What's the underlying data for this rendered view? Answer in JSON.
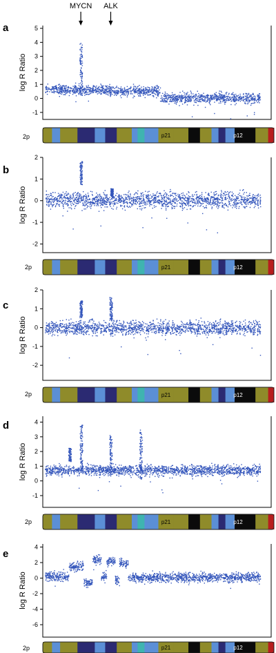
{
  "chart_data": [
    {
      "panel": "a",
      "type": "scatter",
      "ylabel": "log R Ratio",
      "ylim": [
        -1.5,
        5.2
      ],
      "yticks": [
        -1,
        0,
        1,
        2,
        3,
        4,
        5
      ],
      "chromosome_label": "2p",
      "segments": [
        {
          "x0": 0.0,
          "x1": 0.3,
          "y": 0.65
        },
        {
          "x0": 0.3,
          "x1": 0.535,
          "y": 0.55
        },
        {
          "x0": 0.535,
          "x1": 1.0,
          "y": 0.05
        }
      ],
      "spikes": [
        {
          "x": 0.167,
          "y": 2.2,
          "max": 4.4
        }
      ]
    },
    {
      "panel": "b",
      "type": "scatter",
      "ylabel": "log R Ratio",
      "ylim": [
        -2.4,
        2.0
      ],
      "yticks": [
        -2,
        -1,
        0,
        1,
        2
      ],
      "chromosome_label": "2p",
      "segments": [
        {
          "x0": 0.0,
          "x1": 1.0,
          "y": 0.05
        }
      ],
      "spikes": [
        {
          "x": 0.167,
          "y": 1.3,
          "max": 1.9
        },
        {
          "x": 0.31,
          "y": 0.4,
          "max": 0.6
        }
      ]
    },
    {
      "panel": "c",
      "type": "scatter",
      "ylabel": "log R Ratio",
      "ylim": [
        -2.8,
        2.0
      ],
      "yticks": [
        -2,
        -1,
        0,
        1,
        2
      ],
      "chromosome_label": "2p",
      "segments": [
        {
          "x0": 0.0,
          "x1": 1.0,
          "y": 0.0
        }
      ],
      "spikes": [
        {
          "x": 0.167,
          "y": 1.0,
          "max": 1.5
        },
        {
          "x": 0.306,
          "y": 1.0,
          "max": 1.7
        }
      ]
    },
    {
      "panel": "d",
      "type": "scatter",
      "ylabel": "log R Ratio",
      "ylim": [
        -1.8,
        4.4
      ],
      "yticks": [
        -1,
        0,
        1,
        2,
        3,
        4
      ],
      "chromosome_label": "2p",
      "segments": [
        {
          "x0": 0.0,
          "x1": 1.0,
          "y": 0.75
        }
      ],
      "spikes": [
        {
          "x": 0.115,
          "y": 1.8,
          "max": 2.3
        },
        {
          "x": 0.168,
          "y": 2.3,
          "max": 4.0
        },
        {
          "x": 0.305,
          "y": 1.8,
          "max": 3.3
        },
        {
          "x": 0.445,
          "y": 1.8,
          "max": 3.7
        }
      ]
    },
    {
      "panel": "e",
      "type": "scatter",
      "ylabel": "log R Ratio",
      "ylim": [
        -7.6,
        4.4
      ],
      "yticks": [
        -6,
        -4,
        -2,
        0,
        2,
        4
      ],
      "chromosome_label": "2p",
      "segments": [
        {
          "x0": 0.0,
          "x1": 0.11,
          "y": 0.3
        },
        {
          "x0": 0.11,
          "x1": 0.18,
          "y": 1.5
        },
        {
          "x0": 0.18,
          "x1": 0.22,
          "y": -0.5
        },
        {
          "x0": 0.22,
          "x1": 0.26,
          "y": 2.4
        },
        {
          "x0": 0.26,
          "x1": 0.285,
          "y": 0.2
        },
        {
          "x0": 0.285,
          "x1": 0.325,
          "y": 2.2
        },
        {
          "x0": 0.325,
          "x1": 0.345,
          "y": -0.3
        },
        {
          "x0": 0.345,
          "x1": 0.385,
          "y": 2.0
        },
        {
          "x0": 0.385,
          "x1": 1.0,
          "y": 0.15
        }
      ],
      "spikes": []
    }
  ],
  "markers": [
    {
      "label": "MYCN",
      "x": 0.167
    },
    {
      "label": "ALK",
      "x": 0.306
    }
  ],
  "band_labels": {
    "p21": "p21",
    "p12": "p12"
  },
  "colors": {
    "point": "#3355bb",
    "olive": "#8f8b2a",
    "navy": "#2b2a72",
    "lightblue": "#5b8fd6",
    "teal": "#3fb4b0",
    "black": "#0b0b0b",
    "red": "#b81e1e",
    "axis": "#000000"
  }
}
